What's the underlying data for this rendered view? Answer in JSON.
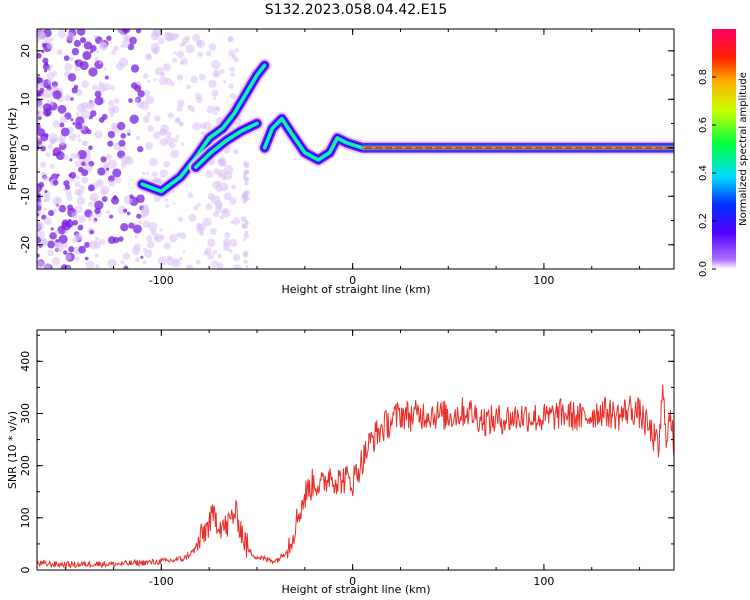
{
  "title": "S132.2023.058.04.42.E15",
  "colors": {
    "snr_line": "#e8302a",
    "noise_purple": "#7a1ee0",
    "noise_light": "#d9bff5"
  },
  "chart_data": [
    {
      "type": "heatmap",
      "title": "S132.2023.058.04.42.E15",
      "xlabel": "Height of straight line (km)",
      "ylabel": "Frequency (Hz)",
      "xlim": [
        -165,
        168
      ],
      "ylim": [
        -25,
        24.5
      ],
      "xticks": [
        -100,
        0,
        100
      ],
      "xtick_labels": [
        "-100",
        "0",
        "100"
      ],
      "yticks": [
        -20,
        -10,
        0,
        10,
        20
      ],
      "ytick_labels": [
        "-20",
        "-10",
        "0",
        "10",
        "20"
      ],
      "colorbar": {
        "label": "Normalized spectral amplitude",
        "range": [
          0,
          1
        ],
        "ticks": [
          0.0,
          0.2,
          0.4,
          0.6,
          0.8
        ],
        "tick_labels": [
          "0.0",
          "0.2",
          "0.4",
          "0.6",
          "0.8"
        ],
        "colormap": "gist_rainbow_r"
      },
      "ridges": [
        {
          "name": "main-track",
          "points": [
            [
              -110,
              -7.5
            ],
            [
              -100,
              -9
            ],
            [
              -90,
              -6
            ],
            [
              -82,
              -2
            ],
            [
              -75,
              2
            ],
            [
              -68,
              4
            ],
            [
              -62,
              7
            ],
            [
              -56,
              11
            ],
            [
              -50,
              15
            ],
            [
              -46,
              17
            ]
          ]
        },
        {
          "name": "lower-track",
          "points": [
            [
              -82,
              -4
            ],
            [
              -74,
              -1
            ],
            [
              -66,
              1.5
            ],
            [
              -58,
              3.5
            ],
            [
              -50,
              5
            ]
          ]
        },
        {
          "name": "doppler-curve",
          "points": [
            [
              -46,
              0
            ],
            [
              -42,
              4
            ],
            [
              -37,
              6
            ],
            [
              -32,
              3
            ],
            [
              -25,
              -1
            ],
            [
              -18,
              -2.5
            ],
            [
              -12,
              -1
            ],
            [
              -8,
              2
            ],
            [
              -3,
              1
            ],
            [
              5,
              0
            ],
            [
              15,
              0
            ],
            [
              30,
              0
            ],
            [
              55,
              0
            ],
            [
              100,
              0
            ],
            [
              150,
              0
            ],
            [
              168,
              0
            ]
          ]
        }
      ]
    },
    {
      "type": "line",
      "xlabel": "Height of straight line (km)",
      "ylabel": "SNR (10 * v/v)",
      "xlim": [
        -165,
        168
      ],
      "ylim": [
        0,
        460
      ],
      "xticks": [
        -100,
        0,
        100
      ],
      "xtick_labels": [
        "-100",
        "0",
        "100"
      ],
      "yticks": [
        0,
        100,
        200,
        300,
        400
      ],
      "ytick_labels": [
        "0",
        "100",
        "200",
        "300",
        "400"
      ],
      "series": [
        {
          "x": [
            -165,
            -155,
            -145,
            -135,
            -125,
            -115,
            -105,
            -95,
            -88,
            -82,
            -78,
            -74,
            -72,
            -70,
            -66,
            -62,
            -60,
            -57,
            -54,
            -50,
            -45,
            -40,
            -36,
            -32,
            -28,
            -24,
            -20,
            -16,
            -12,
            -8,
            -4,
            0,
            5,
            10,
            15,
            20,
            25,
            30,
            40,
            50,
            60,
            70,
            80,
            90,
            100,
            110,
            120,
            130,
            140,
            145,
            150,
            155,
            158,
            160,
            162,
            164,
            166,
            168
          ],
          "y": [
            12,
            11,
            10,
            12,
            11,
            13,
            15,
            18,
            22,
            40,
            70,
            95,
            105,
            90,
            80,
            110,
            100,
            60,
            35,
            25,
            20,
            18,
            30,
            60,
            110,
            150,
            170,
            160,
            185,
            170,
            175,
            170,
            210,
            250,
            270,
            285,
            300,
            295,
            300,
            295,
            305,
            285,
            290,
            295,
            290,
            300,
            290,
            305,
            295,
            310,
            300,
            270,
            250,
            230,
            340,
            260,
            290,
            240
          ]
        }
      ]
    }
  ]
}
